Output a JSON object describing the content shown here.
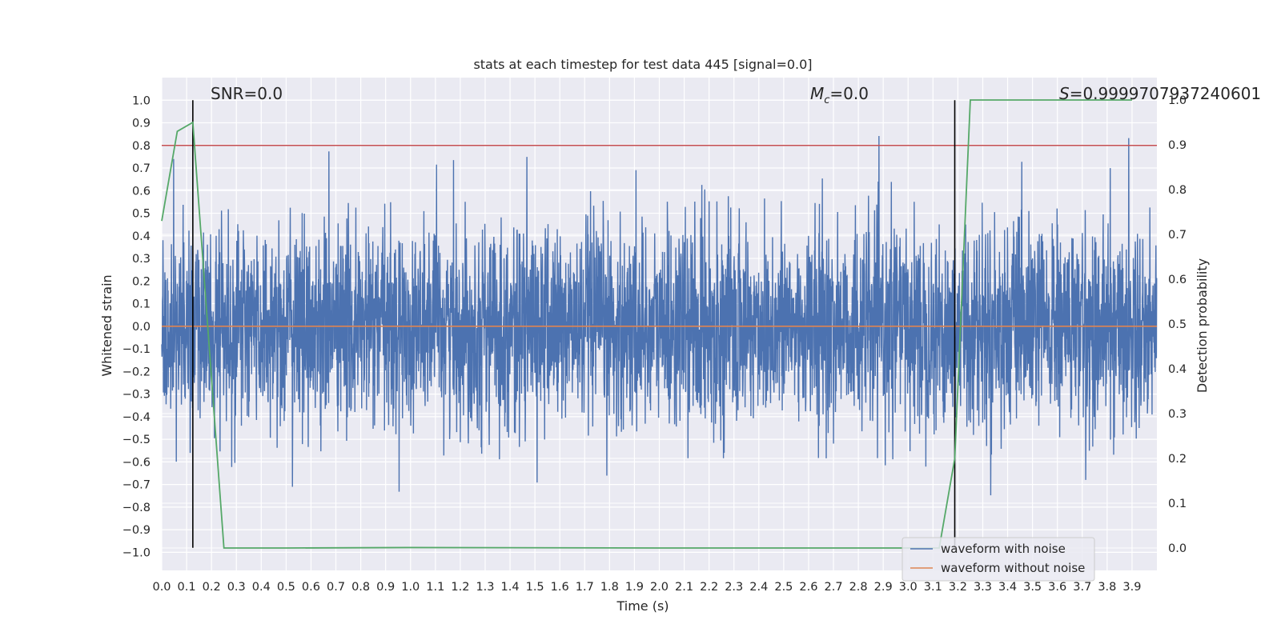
{
  "chart_data": {
    "type": "line",
    "title": "stats at each timestep for test data 445 [signal=0.0]",
    "xlabel": "Time (s)",
    "ylabel": "Whitened strain",
    "y2label": "Detection probability",
    "xlim": [
      0.0,
      4.0
    ],
    "ylim": [
      -1.08,
      1.1
    ],
    "y2lim": [
      -0.05,
      1.05
    ],
    "x_ticks": [
      0.0,
      0.1,
      0.2,
      0.3,
      0.4,
      0.5,
      0.6,
      0.7,
      0.8,
      0.9,
      1.0,
      1.1,
      1.2,
      1.3,
      1.4,
      1.5,
      1.6,
      1.7,
      1.8,
      1.9,
      2.0,
      2.1,
      2.2,
      2.3,
      2.4,
      2.5,
      2.6,
      2.7,
      2.8,
      2.9,
      3.0,
      3.1,
      3.2,
      3.3,
      3.4,
      3.5,
      3.6,
      3.7,
      3.8,
      3.9
    ],
    "x_tick_labels": [
      "0.0",
      "0.1",
      "0.2",
      "0.3",
      "0.4",
      "0.5",
      "0.6",
      "0.7",
      "0.8",
      "0.9",
      "1.0",
      "1.1",
      "1.2",
      "1.3",
      "1.4",
      "1.5",
      "1.6",
      "1.7",
      "1.8",
      "1.9",
      "2.0",
      "2.1",
      "2.2",
      "2.3",
      "2.4",
      "2.5",
      "2.6",
      "2.7",
      "2.8",
      "2.9",
      "3.0",
      "3.1",
      "3.2",
      "3.3",
      "3.4",
      "3.5",
      "3.6",
      "3.7",
      "3.8",
      "3.9"
    ],
    "y_ticks": [
      1.0,
      0.9,
      0.8,
      0.7,
      0.6,
      0.5,
      0.4,
      0.3,
      0.2,
      0.1,
      0.0,
      -0.1,
      -0.2,
      -0.3,
      -0.4,
      -0.5,
      -0.6,
      -0.7,
      -0.8,
      -0.9,
      -1.0
    ],
    "y_tick_labels": [
      "1.0",
      "0.9",
      "0.8",
      "0.7",
      "0.6",
      "0.5",
      "0.4",
      "0.3",
      "0.2",
      "0.1",
      "0.0",
      "−0.1",
      "−0.2",
      "−0.3",
      "−0.4",
      "−0.5",
      "−0.6",
      "−0.7",
      "−0.8",
      "−0.9",
      "−1.0"
    ],
    "y2_ticks": [
      1.0,
      0.9,
      0.8,
      0.7,
      0.6,
      0.5,
      0.4,
      0.3,
      0.2,
      0.1,
      0.0
    ],
    "y2_tick_labels": [
      "1.0",
      "0.9",
      "0.8",
      "0.7",
      "0.6",
      "0.5",
      "0.4",
      "0.3",
      "0.2",
      "0.1",
      "0.0"
    ],
    "series": [
      {
        "name": "waveform with noise",
        "color": "#4c72b0",
        "description": "noisy whitened strain, 4096 samples, amplitude ~N(0,0.22), peaks near +/-1.0",
        "sample_count": 4096
      },
      {
        "name": "waveform without noise",
        "color": "#dd8452",
        "values_constant": 0.0
      },
      {
        "name": "detection probability",
        "color": "#55a868",
        "axis": "right",
        "x": [
          0.0,
          0.0625,
          0.125,
          0.25,
          0.5,
          1.0,
          2.0,
          3.0,
          3.125,
          3.1875,
          3.25,
          3.5,
          3.75,
          3.9
        ],
        "values": [
          0.73,
          0.93,
          0.95,
          0.0,
          0.0,
          0.001,
          0.0,
          0.0,
          0.0,
          0.2,
          1.0,
          1.0,
          1.0,
          1.0
        ]
      }
    ],
    "horizontal_lines": [
      {
        "y": 0.8,
        "color": "#c44e52",
        "axis": "left"
      }
    ],
    "vertical_lines": [
      {
        "x": 0.125,
        "ymin": -0.98,
        "ymax": 1.0,
        "color": "#000000"
      },
      {
        "x": 3.1875,
        "ymin": -0.98,
        "ymax": 1.0,
        "color": "#000000"
      }
    ],
    "annotations": {
      "snr": "SNR=0.0",
      "mc_symbol": "M",
      "mc_sub": "c",
      "mc_value": "=0.0",
      "s_symbol": "S",
      "s_value": "=0.9999707937240601"
    },
    "legend": {
      "position": "lower-right",
      "entries": [
        {
          "label": "waveform with noise",
          "color": "#4c72b0"
        },
        {
          "label": "waveform without noise",
          "color": "#dd8452"
        }
      ]
    },
    "background": "#eaeaf2",
    "grid": true
  }
}
